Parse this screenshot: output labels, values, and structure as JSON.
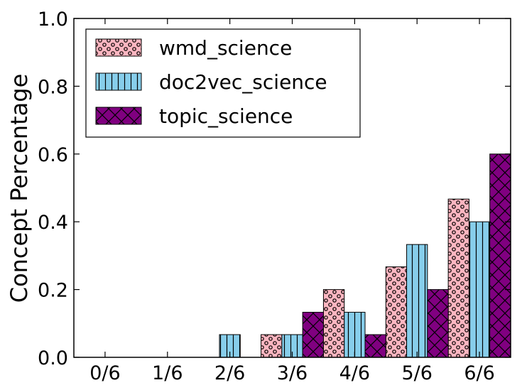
{
  "chart_data": {
    "type": "bar",
    "title": "",
    "xlabel": "",
    "ylabel": "Concept Percentage",
    "ylim": [
      0,
      1.0
    ],
    "yticks": [
      "0.0",
      "0.2",
      "0.4",
      "0.6",
      "0.8",
      "1.0"
    ],
    "categories": [
      "0/6",
      "1/6",
      "2/6",
      "3/6",
      "4/6",
      "5/6",
      "6/6"
    ],
    "series": [
      {
        "name": "wmd_science",
        "color": "#ffb6c1",
        "pattern": "dots",
        "values": [
          0.0,
          0.0,
          0.0,
          0.067,
          0.2,
          0.267,
          0.467
        ]
      },
      {
        "name": "doc2vec_science",
        "color": "#87ceeb",
        "pattern": "vertical-lines",
        "values": [
          0.0,
          0.0,
          0.067,
          0.067,
          0.133,
          0.333,
          0.4
        ]
      },
      {
        "name": "topic_science",
        "color": "#800080",
        "pattern": "crosshatch",
        "values": [
          0.0,
          0.0,
          0.0,
          0.133,
          0.067,
          0.2,
          0.6
        ]
      }
    ],
    "legend_position": "top-left",
    "grid": false
  }
}
